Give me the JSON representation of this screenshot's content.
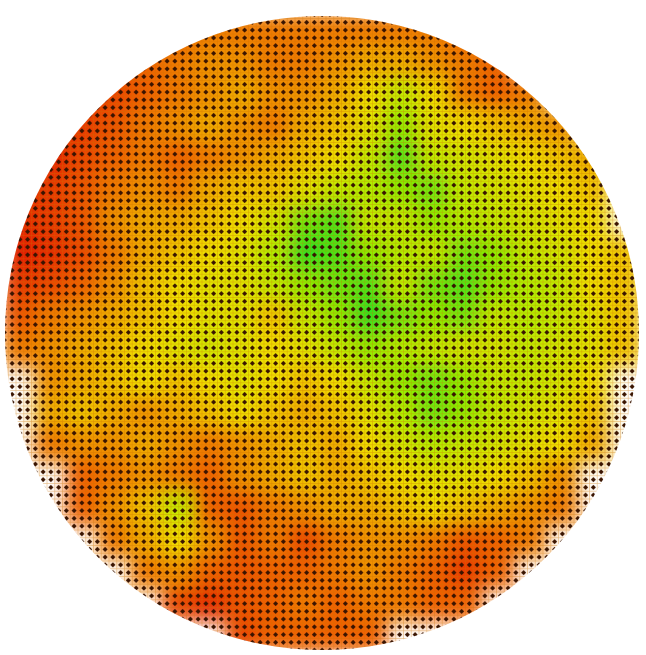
{
  "chart_data": {
    "type": "heatmap",
    "color_stops": [
      [
        0,
        "#e01000"
      ],
      [
        30,
        "#f06000"
      ],
      [
        55,
        "#f0e000"
      ],
      [
        75,
        "#b0f000"
      ],
      [
        100,
        "#00e020"
      ]
    ],
    "values": [
      [
        null,
        null,
        null,
        null,
        null,
        30,
        35,
        35,
        35,
        35,
        35,
        35,
        35,
        35,
        30,
        null,
        null,
        null,
        null,
        null
      ],
      [
        null,
        null,
        null,
        25,
        30,
        35,
        40,
        40,
        35,
        35,
        40,
        45,
        45,
        40,
        35,
        30,
        null,
        null,
        null,
        null
      ],
      [
        null,
        null,
        15,
        20,
        30,
        35,
        40,
        45,
        40,
        40,
        45,
        55,
        70,
        55,
        35,
        30,
        35,
        null,
        null,
        null
      ],
      [
        null,
        10,
        15,
        25,
        35,
        40,
        45,
        40,
        35,
        45,
        50,
        60,
        80,
        60,
        55,
        50,
        45,
        40,
        null,
        null
      ],
      [
        null,
        5,
        20,
        30,
        35,
        30,
        35,
        40,
        45,
        50,
        55,
        70,
        90,
        70,
        65,
        60,
        55,
        50,
        45,
        null
      ],
      [
        15,
        15,
        25,
        35,
        40,
        35,
        45,
        50,
        50,
        60,
        70,
        75,
        80,
        85,
        70,
        65,
        60,
        55,
        50,
        null
      ],
      [
        10,
        15,
        25,
        40,
        45,
        45,
        50,
        55,
        65,
        85,
        90,
        70,
        70,
        80,
        75,
        70,
        65,
        60,
        55,
        null
      ],
      [
        5,
        10,
        20,
        35,
        45,
        50,
        55,
        60,
        75,
        95,
        90,
        80,
        75,
        70,
        85,
        80,
        70,
        65,
        55,
        50
      ],
      [
        15,
        20,
        30,
        40,
        50,
        55,
        60,
        60,
        70,
        80,
        85,
        90,
        70,
        85,
        90,
        80,
        75,
        70,
        55,
        50
      ],
      [
        25,
        35,
        40,
        45,
        50,
        55,
        60,
        60,
        50,
        70,
        80,
        95,
        85,
        80,
        85,
        70,
        75,
        70,
        60,
        50
      ],
      [
        35,
        40,
        45,
        50,
        55,
        60,
        65,
        60,
        55,
        60,
        70,
        80,
        75,
        70,
        65,
        65,
        70,
        65,
        60,
        50
      ],
      [
        null,
        40,
        45,
        50,
        55,
        50,
        55,
        60,
        55,
        50,
        55,
        70,
        80,
        85,
        80,
        70,
        70,
        65,
        55,
        null
      ],
      [
        null,
        45,
        50,
        45,
        40,
        45,
        50,
        55,
        50,
        45,
        50,
        60,
        75,
        85,
        80,
        70,
        65,
        60,
        50,
        null
      ],
      [
        null,
        35,
        40,
        40,
        45,
        40,
        35,
        40,
        45,
        50,
        45,
        55,
        65,
        75,
        70,
        65,
        60,
        55,
        45,
        null
      ],
      [
        null,
        null,
        30,
        35,
        40,
        35,
        30,
        40,
        45,
        50,
        45,
        50,
        55,
        60,
        60,
        55,
        50,
        40,
        null,
        null
      ],
      [
        null,
        null,
        30,
        40,
        50,
        70,
        30,
        25,
        35,
        40,
        45,
        45,
        50,
        55,
        50,
        45,
        40,
        35,
        null,
        null
      ],
      [
        null,
        null,
        null,
        35,
        45,
        55,
        40,
        25,
        35,
        20,
        35,
        40,
        40,
        35,
        25,
        30,
        35,
        null,
        null,
        null
      ],
      [
        null,
        null,
        null,
        null,
        35,
        40,
        30,
        25,
        30,
        30,
        35,
        40,
        35,
        30,
        15,
        30,
        null,
        null,
        null,
        null
      ],
      [
        null,
        null,
        null,
        null,
        null,
        20,
        10,
        25,
        30,
        35,
        30,
        35,
        35,
        30,
        30,
        null,
        null,
        null,
        null,
        null
      ],
      [
        null,
        null,
        null,
        null,
        null,
        null,
        null,
        20,
        30,
        30,
        30,
        30,
        null,
        null,
        null,
        null,
        null,
        null,
        null,
        null
      ]
    ]
  }
}
